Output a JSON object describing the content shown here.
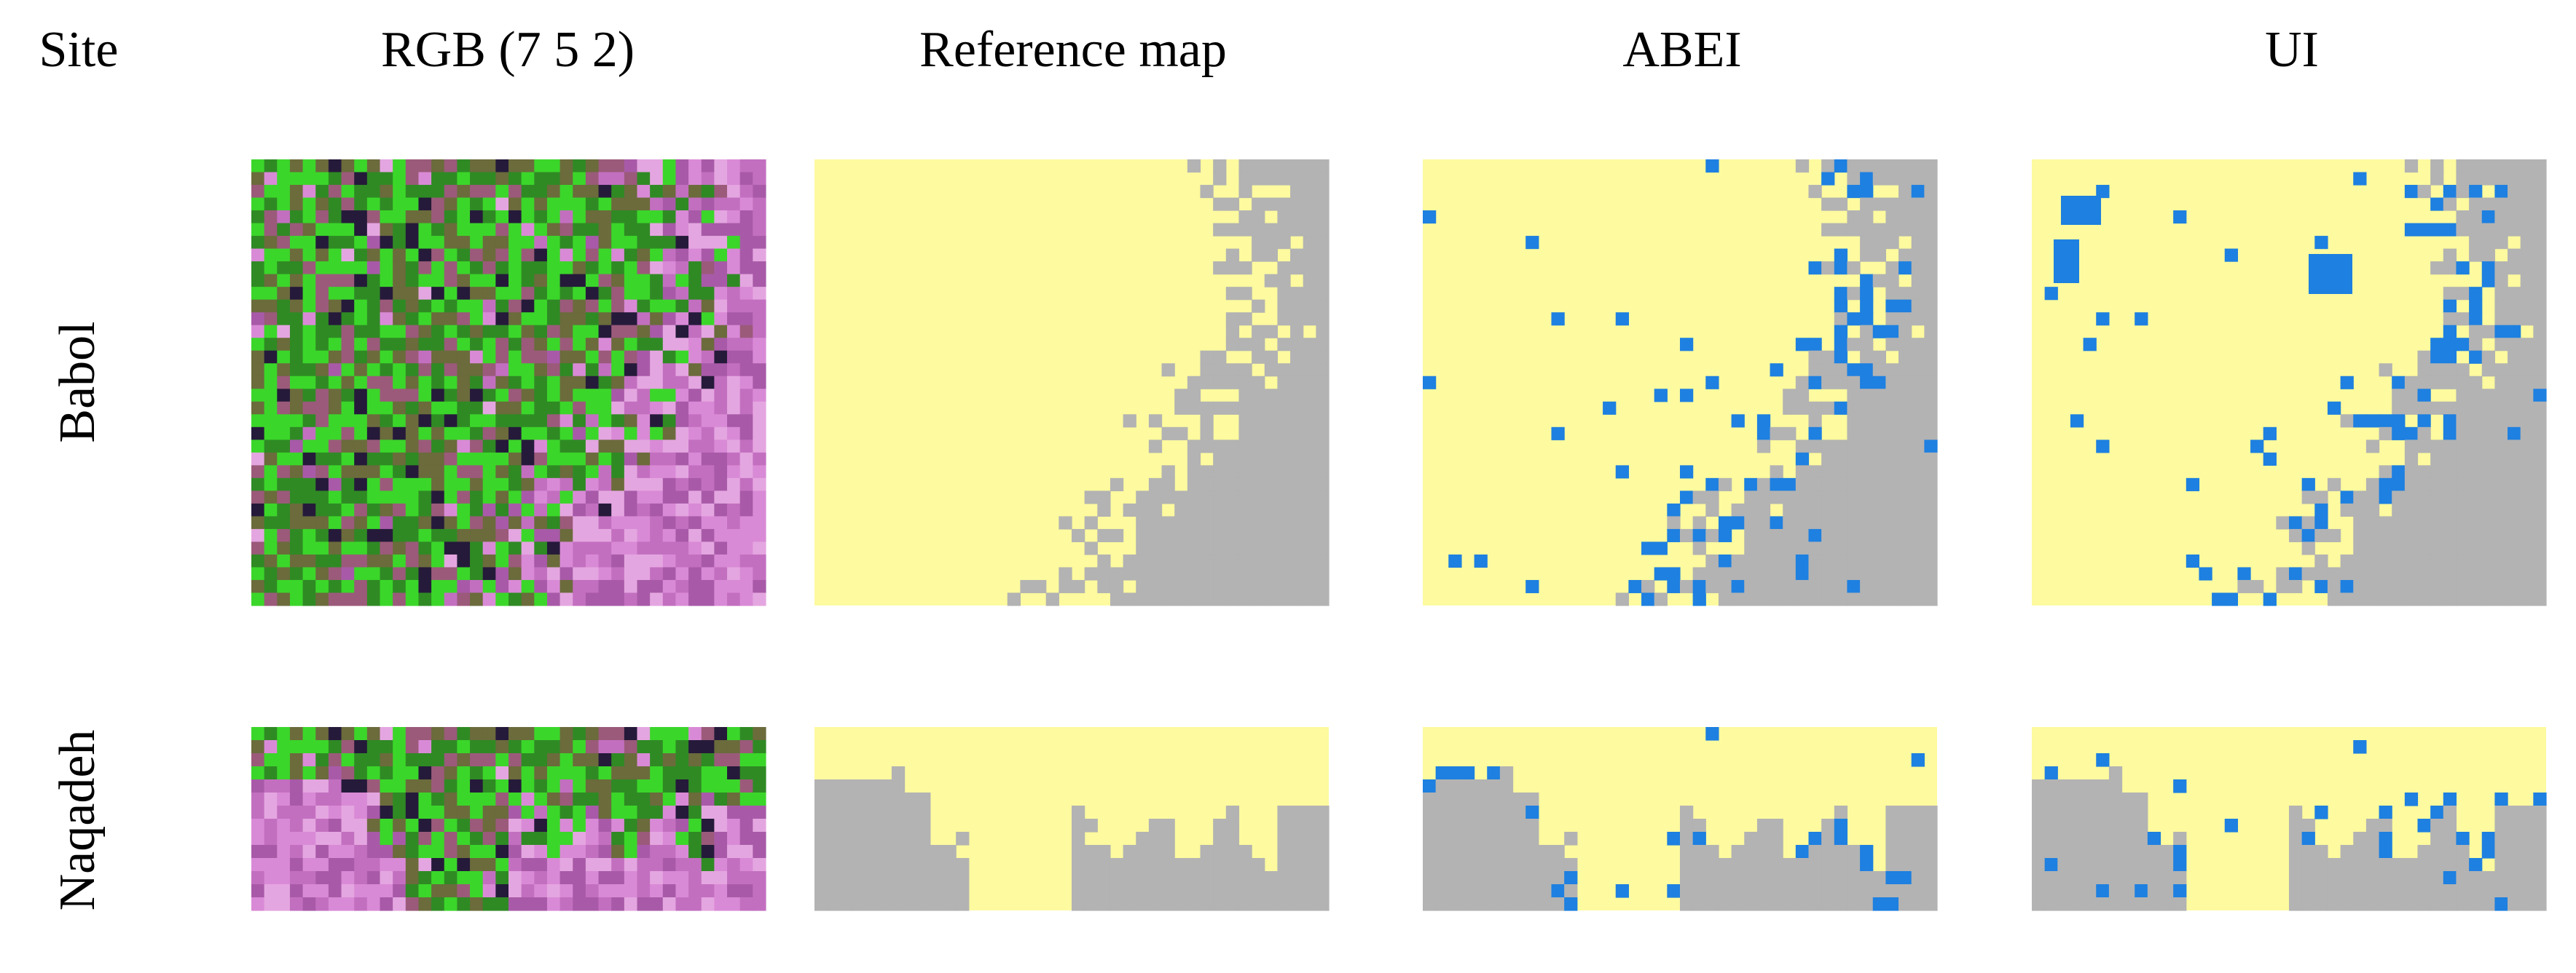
{
  "header": {
    "columns": [
      "Site",
      "RGB (7 5 2)",
      "Reference map",
      "ABEI",
      "UI"
    ]
  },
  "rows": [
    {
      "site": "Babol"
    },
    {
      "site": "Naqadeh"
    }
  ]
}
